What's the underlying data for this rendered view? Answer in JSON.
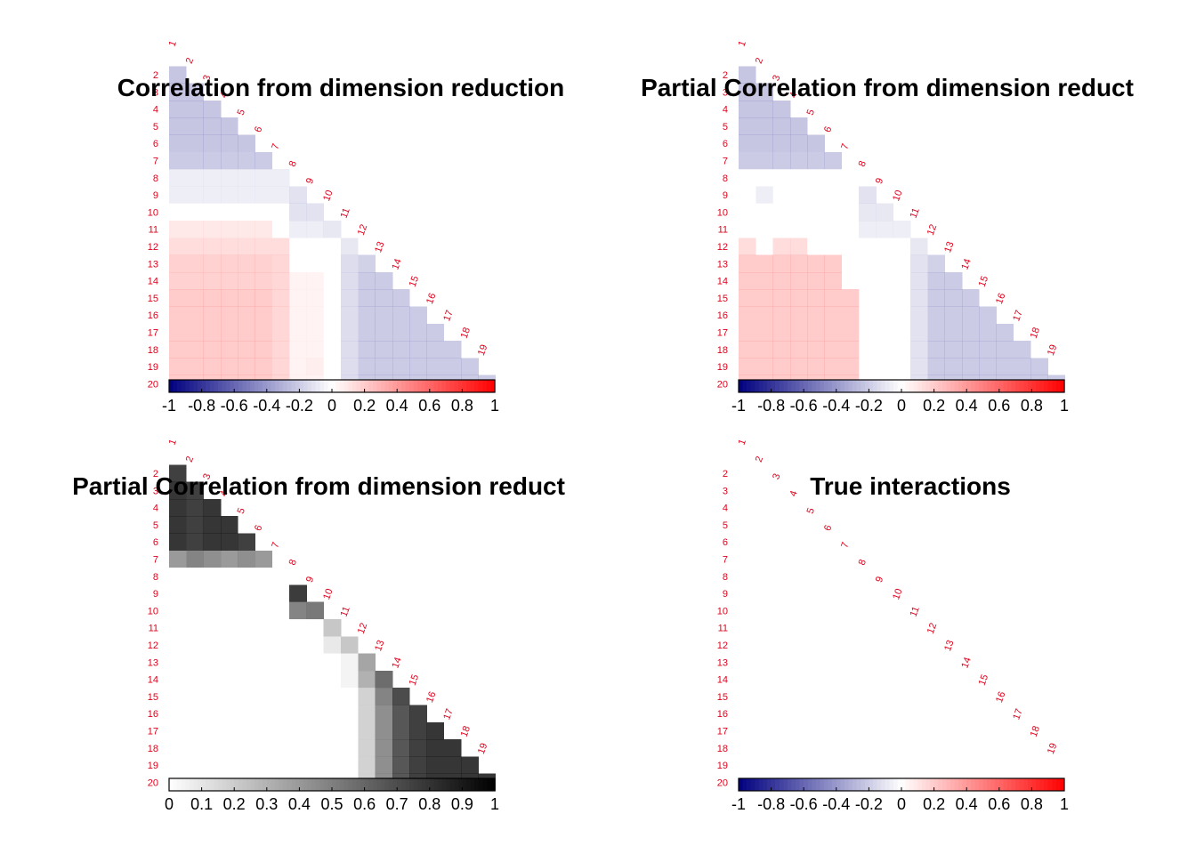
{
  "chart_data": [
    {
      "type": "heatmap",
      "title": "Correlation from dimension reduction",
      "variables": [
        "1",
        "2",
        "3",
        "4",
        "5",
        "6",
        "7",
        "8",
        "9",
        "10",
        "11",
        "12",
        "13",
        "14",
        "15",
        "16",
        "17",
        "18",
        "19",
        "20"
      ],
      "layout": "lower-triangle",
      "colorscale": "diverging",
      "color_low": "#00007f",
      "color_mid": "#ffffff",
      "color_high": "#ff0000",
      "range": [
        -1,
        1
      ],
      "colorbar_ticks": [
        "-1",
        "-0.8",
        "-0.6",
        "-0.4",
        "-0.2",
        "0",
        "0.2",
        "0.4",
        "0.6",
        "0.8",
        "1"
      ],
      "rows": [
        [],
        [
          -0.5
        ],
        [
          -0.5,
          -0.5
        ],
        [
          -0.5,
          -0.5,
          -0.5
        ],
        [
          -0.5,
          -0.5,
          -0.5,
          -0.5
        ],
        [
          -0.5,
          -0.5,
          -0.5,
          -0.5,
          -0.5
        ],
        [
          -0.45,
          -0.45,
          -0.45,
          -0.45,
          -0.45,
          -0.45
        ],
        [
          -0.15,
          -0.15,
          -0.15,
          -0.15,
          -0.15,
          -0.15,
          -0.15
        ],
        [
          -0.15,
          -0.15,
          -0.15,
          -0.15,
          -0.15,
          -0.15,
          -0.15,
          -0.25
        ],
        [
          0,
          0,
          0,
          0,
          0,
          0,
          0,
          -0.25,
          -0.25
        ],
        [
          0.2,
          0.2,
          0.2,
          0.2,
          0.2,
          0.2,
          0,
          -0.15,
          -0.15,
          -0.2
        ],
        [
          0.3,
          0.3,
          0.3,
          0.3,
          0.3,
          0.3,
          0.3,
          0,
          0,
          0,
          -0.2
        ],
        [
          0.4,
          0.4,
          0.4,
          0.4,
          0.4,
          0.4,
          0.35,
          0,
          0,
          0,
          -0.3,
          -0.4
        ],
        [
          0.4,
          0.4,
          0.4,
          0.4,
          0.4,
          0.4,
          0.35,
          0.1,
          0.1,
          0,
          -0.3,
          -0.45,
          -0.45
        ],
        [
          0.45,
          0.45,
          0.45,
          0.45,
          0.45,
          0.45,
          0.35,
          0.1,
          0.1,
          0,
          -0.3,
          -0.45,
          -0.45,
          -0.45
        ],
        [
          0.45,
          0.45,
          0.45,
          0.45,
          0.45,
          0.45,
          0.35,
          0.1,
          0.1,
          0,
          -0.3,
          -0.45,
          -0.45,
          -0.45,
          -0.45
        ],
        [
          0.45,
          0.45,
          0.45,
          0.45,
          0.45,
          0.45,
          0.35,
          0.1,
          0.1,
          0,
          -0.3,
          -0.45,
          -0.45,
          -0.45,
          -0.45,
          -0.45
        ],
        [
          0.45,
          0.45,
          0.45,
          0.45,
          0.45,
          0.45,
          0.35,
          0.1,
          0.1,
          0,
          -0.3,
          -0.45,
          -0.45,
          -0.45,
          -0.45,
          -0.45,
          -0.45
        ],
        [
          0.45,
          0.45,
          0.45,
          0.45,
          0.45,
          0.45,
          0.35,
          0.1,
          0.15,
          0,
          -0.3,
          -0.45,
          -0.45,
          -0.45,
          -0.45,
          -0.45,
          -0.45,
          -0.45
        ],
        [
          0.45,
          0.45,
          0.45,
          0.45,
          0.45,
          0.45,
          0.35,
          0.1,
          0.1,
          0,
          -0.3,
          -0.45,
          -0.45,
          -0.45,
          -0.45,
          -0.45,
          -0.45,
          -0.45,
          -0.45
        ]
      ]
    },
    {
      "type": "heatmap",
      "title": "Partial Correlation from dimension reduct",
      "variables": [
        "1",
        "2",
        "3",
        "4",
        "5",
        "6",
        "7",
        "8",
        "9",
        "10",
        "11",
        "12",
        "13",
        "14",
        "15",
        "16",
        "17",
        "18",
        "19",
        "20"
      ],
      "layout": "lower-triangle",
      "colorscale": "diverging",
      "color_low": "#00007f",
      "color_mid": "#ffffff",
      "color_high": "#ff0000",
      "range": [
        -1,
        1
      ],
      "colorbar_ticks": [
        "-1",
        "-0.8",
        "-0.6",
        "-0.4",
        "-0.2",
        "0",
        "0.2",
        "0.4",
        "0.6",
        "0.8",
        "1"
      ],
      "rows": [
        [],
        [
          -0.5
        ],
        [
          -0.5,
          -0.5
        ],
        [
          -0.5,
          -0.5,
          -0.5
        ],
        [
          -0.5,
          -0.5,
          -0.5,
          -0.5
        ],
        [
          -0.5,
          -0.5,
          -0.5,
          -0.5,
          -0.5
        ],
        [
          -0.45,
          -0.45,
          -0.45,
          -0.45,
          -0.45,
          -0.45
        ],
        [
          0,
          0,
          0,
          0,
          0,
          0,
          0
        ],
        [
          0,
          -0.15,
          0,
          0,
          0,
          0,
          0,
          -0.25
        ],
        [
          0,
          0,
          0,
          0,
          0,
          0,
          0,
          -0.2,
          -0.2
        ],
        [
          0,
          0,
          0,
          0,
          0,
          0,
          0,
          -0.15,
          -0.15,
          -0.15
        ],
        [
          0.3,
          0,
          0.3,
          0.3,
          0,
          0,
          0,
          0,
          0,
          0,
          -0.2
        ],
        [
          0.45,
          0.45,
          0.45,
          0.45,
          0.45,
          0.45,
          0,
          0,
          0,
          0,
          -0.25,
          -0.4
        ],
        [
          0.45,
          0.45,
          0.45,
          0.45,
          0.45,
          0.45,
          0,
          0,
          0,
          0,
          -0.25,
          -0.45,
          -0.45
        ],
        [
          0.45,
          0.45,
          0.45,
          0.45,
          0.45,
          0.45,
          0.45,
          0,
          0,
          0,
          -0.25,
          -0.45,
          -0.45,
          -0.45
        ],
        [
          0.45,
          0.45,
          0.45,
          0.45,
          0.45,
          0.45,
          0.45,
          0,
          0,
          0,
          -0.25,
          -0.45,
          -0.45,
          -0.45,
          -0.45
        ],
        [
          0.45,
          0.45,
          0.45,
          0.45,
          0.45,
          0.45,
          0.45,
          0,
          0,
          0,
          -0.25,
          -0.45,
          -0.45,
          -0.45,
          -0.45,
          -0.45
        ],
        [
          0.45,
          0.45,
          0.45,
          0.45,
          0.45,
          0.45,
          0.45,
          0,
          0,
          0,
          -0.25,
          -0.45,
          -0.45,
          -0.45,
          -0.45,
          -0.45,
          -0.45
        ],
        [
          0.45,
          0.45,
          0.45,
          0.45,
          0.45,
          0.45,
          0.45,
          0,
          0,
          0,
          -0.25,
          -0.45,
          -0.45,
          -0.45,
          -0.45,
          -0.45,
          -0.45,
          -0.45
        ],
        [
          0.45,
          0.45,
          0.45,
          0.45,
          0.45,
          0.45,
          0.45,
          0,
          0,
          0,
          -0.25,
          -0.45,
          -0.45,
          -0.45,
          -0.45,
          -0.45,
          -0.45,
          -0.45,
          -0.45
        ]
      ]
    },
    {
      "type": "heatmap",
      "title": "Partial Correlation from dimension reduct",
      "variables": [
        "1",
        "2",
        "3",
        "4",
        "5",
        "6",
        "7",
        "8",
        "9",
        "10",
        "11",
        "12",
        "13",
        "14",
        "15",
        "16",
        "17",
        "18",
        "19",
        "20"
      ],
      "layout": "lower-triangle",
      "colorscale": "sequential",
      "color_low": "#ffffff",
      "color_high": "#000000",
      "range": [
        0,
        1
      ],
      "colorbar_ticks": [
        "0",
        "0.1",
        "0.2",
        "0.3",
        "0.4",
        "0.5",
        "0.6",
        "0.7",
        "0.8",
        "0.9",
        "1"
      ],
      "rows": [
        [],
        [
          0.85
        ],
        [
          0.9,
          0.85
        ],
        [
          0.9,
          0.85,
          0.9
        ],
        [
          0.9,
          0.85,
          0.9,
          0.9
        ],
        [
          0.9,
          0.85,
          0.9,
          0.9,
          0.85
        ],
        [
          0.45,
          0.55,
          0.5,
          0.45,
          0.5,
          0.45
        ],
        [
          0,
          0,
          0,
          0,
          0,
          0,
          0
        ],
        [
          0,
          0,
          0,
          0,
          0,
          0,
          0,
          0.87
        ],
        [
          0,
          0,
          0,
          0,
          0,
          0,
          0,
          0.55,
          0.6
        ],
        [
          0,
          0,
          0,
          0,
          0,
          0,
          0,
          0,
          0,
          0.25
        ],
        [
          0,
          0,
          0,
          0,
          0,
          0,
          0,
          0,
          0,
          0.1,
          0.25
        ],
        [
          0,
          0,
          0,
          0,
          0,
          0,
          0,
          0,
          0,
          0,
          0.05,
          0.4
        ],
        [
          0,
          0,
          0,
          0,
          0,
          0,
          0,
          0,
          0,
          0,
          0.05,
          0.35,
          0.65
        ],
        [
          0,
          0,
          0,
          0,
          0,
          0,
          0,
          0,
          0,
          0,
          0,
          0.2,
          0.55,
          0.8
        ],
        [
          0,
          0,
          0,
          0,
          0,
          0,
          0,
          0,
          0,
          0,
          0,
          0.2,
          0.5,
          0.75,
          0.85
        ],
        [
          0,
          0,
          0,
          0,
          0,
          0,
          0,
          0,
          0,
          0,
          0,
          0.2,
          0.5,
          0.75,
          0.85,
          0.9
        ],
        [
          0,
          0,
          0,
          0,
          0,
          0,
          0,
          0,
          0,
          0,
          0,
          0.2,
          0.5,
          0.75,
          0.85,
          0.9,
          0.9
        ],
        [
          0,
          0,
          0,
          0,
          0,
          0,
          0,
          0,
          0,
          0,
          0,
          0.2,
          0.5,
          0.75,
          0.85,
          0.9,
          0.9,
          0.9
        ],
        [
          0,
          0,
          0,
          0,
          0,
          0,
          0,
          0,
          0,
          0,
          0,
          0.2,
          0.5,
          0.75,
          0.85,
          0.9,
          0.9,
          0.9,
          0.9
        ]
      ]
    },
    {
      "type": "heatmap",
      "title": "True interactions",
      "variables": [
        "1",
        "2",
        "3",
        "4",
        "5",
        "6",
        "7",
        "8",
        "9",
        "10",
        "11",
        "12",
        "13",
        "14",
        "15",
        "16",
        "17",
        "18",
        "19",
        "20"
      ],
      "layout": "lower-triangle",
      "colorscale": "diverging",
      "color_low": "#00007f",
      "color_mid": "#ffffff",
      "color_high": "#ff0000",
      "range": [
        -1,
        1
      ],
      "colorbar_ticks": [
        "-1",
        "-0.8",
        "-0.6",
        "-0.4",
        "-0.2",
        "0",
        "0.2",
        "0.4",
        "0.6",
        "0.8",
        "1"
      ],
      "rows": []
    }
  ]
}
